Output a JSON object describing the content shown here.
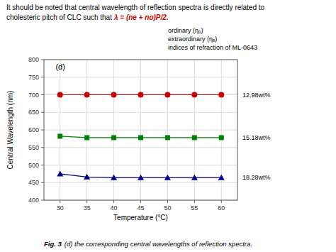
{
  "chart_data": {
    "type": "line",
    "x": [
      30,
      35,
      40,
      45,
      50,
      55,
      60
    ],
    "series": [
      {
        "name": "12.98wt%",
        "color": "#cc0000",
        "marker": "circle",
        "values": [
          700,
          700,
          700,
          700,
          700,
          700,
          700
        ]
      },
      {
        "name": "15.18wt%",
        "color": "#008000",
        "marker": "square",
        "values": [
          582,
          578,
          578,
          578,
          578,
          578,
          578
        ]
      },
      {
        "name": "18.28wt%",
        "color": "#00008B",
        "marker": "triangle",
        "values": [
          475,
          466,
          464,
          464,
          464,
          464,
          464
        ]
      }
    ],
    "x_label": "Temperature (°C)",
    "y_label": "Central Wavelength (nm)",
    "xlim": [
      27,
      63
    ],
    "ylim": [
      400,
      800
    ],
    "xticks": [
      30,
      35,
      40,
      45,
      50,
      55,
      60
    ],
    "yticks": [
      400,
      450,
      500,
      550,
      600,
      650,
      700,
      750,
      800
    ],
    "grid": true,
    "annotations": [
      {
        "text": "It should be noted that central wavelength of reflection spectra is directly related to"
      },
      {
        "text": "cholesteric pitch of CLC such that"
      },
      {
        "text": "λ = (ne + no)P/2.",
        "color": "#cc0000"
      },
      {
        "text": "ordinary (ηₒ)"
      },
      {
        "text": "extraordinary (ηₑ)"
      },
      {
        "text": "indices of refraction of ML-0643"
      },
      {
        "text": "(d)"
      },
      {
        "text": "Fig. 3"
      },
      {
        "text": "(d) the corresponding central wavelengths of reflection spectra."
      }
    ]
  }
}
